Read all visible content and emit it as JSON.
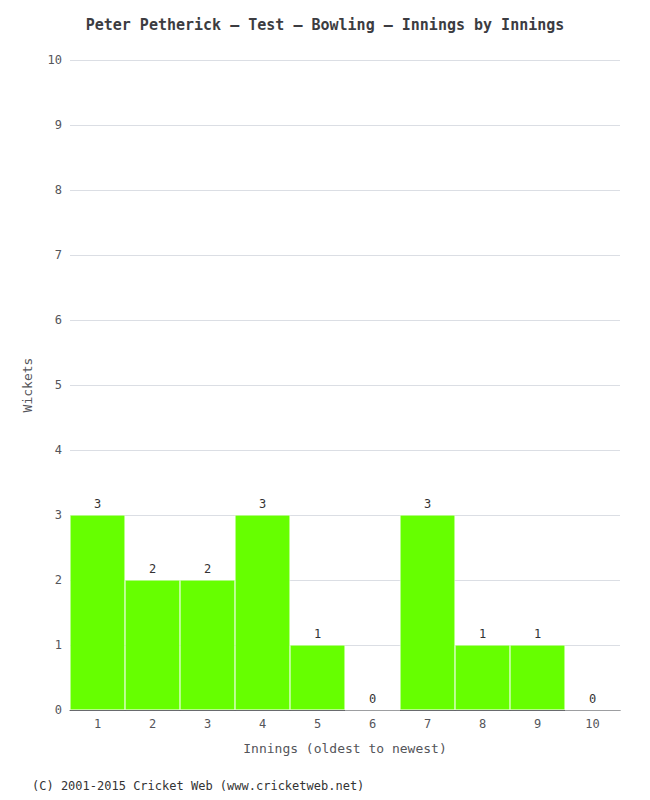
{
  "chart_data": {
    "type": "bar",
    "title": "Peter Petherick – Test – Bowling – Innings by Innings",
    "x_label": "Innings (oldest to newest)",
    "y_label": "Wickets",
    "categories": [
      "1",
      "2",
      "3",
      "4",
      "5",
      "6",
      "7",
      "8",
      "9",
      "10"
    ],
    "values": [
      3,
      2,
      2,
      3,
      1,
      0,
      3,
      1,
      1,
      0
    ],
    "color": "#66ff00",
    "ylim": [
      0,
      10
    ],
    "yticks": [
      0,
      1,
      2,
      3,
      4,
      5,
      6,
      7,
      8,
      9,
      10
    ],
    "grid": true,
    "data_labels": true,
    "footer": "(C) 2001-2015 Cricket Web (www.cricketweb.net)"
  }
}
